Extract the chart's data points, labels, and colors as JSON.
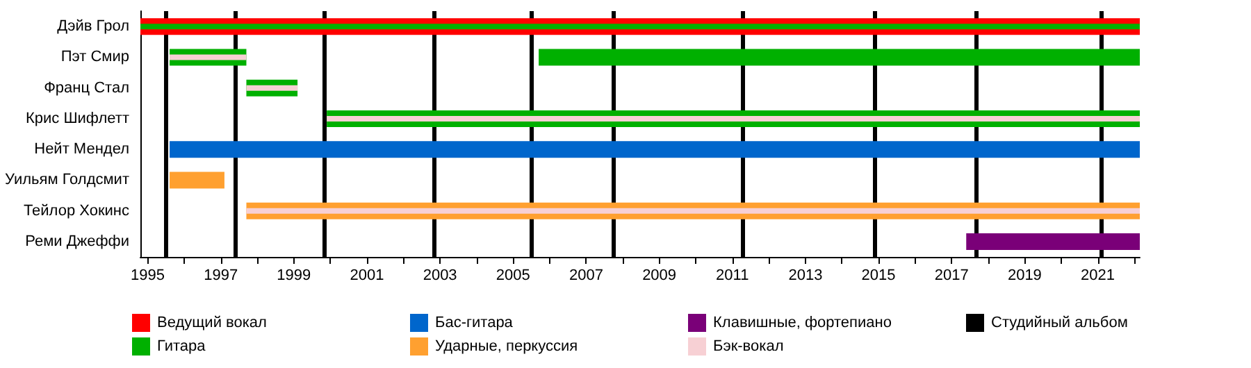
{
  "chart_data": {
    "type": "bar",
    "orientation": "horizontal",
    "categories": [
      "Дэйв Грол",
      "Пэт Смир",
      "Франц Стал",
      "Крис Шифлетт",
      "Нейт Мендел",
      "Уильям Голдсмит",
      "Тейлор Хокинс",
      "Реми Джеффи"
    ],
    "series": [
      {
        "name": "Ведущий вокал",
        "color": "#ff0000",
        "base": [
          1994.8,
          null,
          null,
          null,
          null,
          null,
          null,
          null
        ],
        "values": [
          27.35,
          null,
          null,
          null,
          null,
          null,
          null,
          null
        ]
      },
      {
        "name": "Гитара",
        "color": "#00b000",
        "base": [
          1994.8,
          1995.6,
          1997.7,
          1999.9,
          null,
          null,
          null,
          null
        ],
        "values": [
          27.35,
          2.1,
          1.4,
          22.25,
          null,
          null,
          null,
          null
        ]
      },
      {
        "color": "#00b000",
        "base": [
          null,
          2005.7,
          null,
          null,
          null,
          null,
          null,
          null
        ],
        "values": [
          null,
          16.45,
          null,
          null,
          null,
          null,
          null,
          null
        ]
      },
      {
        "name": "Бас-гитара",
        "color": "#0066cc",
        "base": [
          null,
          null,
          null,
          null,
          1995.6,
          null,
          null,
          null
        ],
        "values": [
          null,
          null,
          null,
          null,
          26.55,
          null,
          null,
          null
        ]
      },
      {
        "name": "Ударные, перкуссия",
        "color": "#ffa030",
        "base": [
          null,
          null,
          null,
          null,
          null,
          1995.6,
          1997.7,
          null
        ],
        "values": [
          null,
          null,
          null,
          null,
          null,
          1.5,
          24.45,
          null
        ]
      },
      {
        "name": "Клавишные, фортепиано",
        "color": "#7a0078",
        "base": [
          null,
          null,
          null,
          null,
          null,
          null,
          null,
          2017.4
        ],
        "values": [
          null,
          null,
          null,
          null,
          null,
          null,
          null,
          4.75
        ]
      },
      {
        "name": "Бэк-вокал",
        "color": "#f7d0d4",
        "base": [
          null,
          1995.6,
          1997.7,
          1999.9,
          null,
          null,
          1997.7,
          null
        ],
        "values": [
          null,
          2.1,
          1.4,
          22.25,
          null,
          null,
          24.45,
          null
        ]
      }
    ],
    "ref_lines": [
      {
        "axis": "x",
        "value": 1995.5,
        "label": "Студийный альбом",
        "color": "#000000"
      },
      {
        "axis": "x",
        "value": 1997.4,
        "color": "#000000"
      },
      {
        "axis": "x",
        "value": 1999.84,
        "color": "#000000"
      },
      {
        "axis": "x",
        "value": 2002.82,
        "color": "#000000"
      },
      {
        "axis": "x",
        "value": 2005.48,
        "color": "#000000"
      },
      {
        "axis": "x",
        "value": 2007.74,
        "color": "#000000"
      },
      {
        "axis": "x",
        "value": 2011.29,
        "color": "#000000"
      },
      {
        "axis": "x",
        "value": 2014.9,
        "color": "#000000"
      },
      {
        "axis": "x",
        "value": 2017.67,
        "color": "#000000"
      },
      {
        "axis": "x",
        "value": 2021.1,
        "color": "#000000"
      }
    ],
    "xlim": [
      1994.8,
      2022.15
    ],
    "xticks": [
      1995,
      {
        "value": 1996,
        "label": null
      },
      1997,
      {
        "value": 1998,
        "label": null
      },
      1999,
      {
        "value": 2000,
        "label": null
      },
      2001,
      {
        "value": 2002,
        "label": null
      },
      2003,
      {
        "value": 2004,
        "label": null
      },
      2005,
      {
        "value": 2006,
        "label": null
      },
      2007,
      {
        "value": 2008,
        "label": null
      },
      2009,
      {
        "value": 2010,
        "label": null
      },
      2011,
      {
        "value": 2012,
        "label": null
      },
      2013,
      {
        "value": 2014,
        "label": null
      },
      2015,
      {
        "value": 2016,
        "label": null
      },
      2017,
      {
        "value": 2018,
        "label": null
      },
      2019,
      {
        "value": 2020,
        "label": null
      },
      2021,
      {
        "value": 2022,
        "label": null
      }
    ],
    "grid": false,
    "legend": "bottom"
  }
}
